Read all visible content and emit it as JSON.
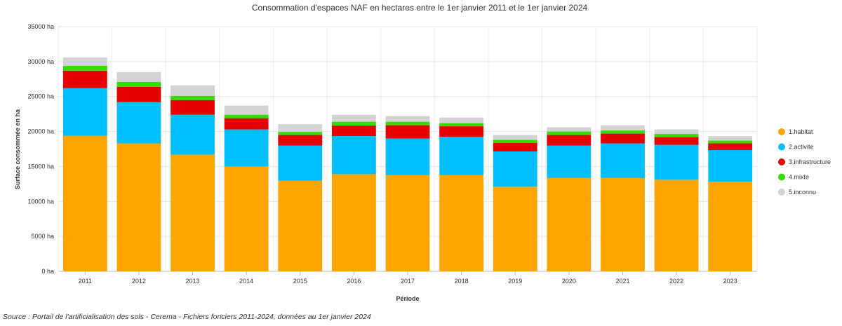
{
  "chart_data": {
    "type": "bar",
    "stacked": true,
    "title": "Consommation d'espaces NAF en hectares entre le 1er janvier 2011 et le 1er janvier 2024",
    "xlabel": "Période",
    "ylabel": "Surface consommée en ha",
    "ylim": [
      0,
      35000
    ],
    "yticks": [
      {
        "value": 0,
        "label": "0 ha"
      },
      {
        "value": 5000,
        "label": "5000 ha"
      },
      {
        "value": 10000,
        "label": "10000 ha"
      },
      {
        "value": 15000,
        "label": "15000 ha"
      },
      {
        "value": 20000,
        "label": "20000 ha"
      },
      {
        "value": 25000,
        "label": "25000 ha"
      },
      {
        "value": 30000,
        "label": "30000 ha"
      },
      {
        "value": 35000,
        "label": "35000 ha"
      }
    ],
    "grid": true,
    "legend_position": "right",
    "categories": [
      "2011",
      "2012",
      "2013",
      "2014",
      "2015",
      "2016",
      "2017",
      "2018",
      "2019",
      "2020",
      "2021",
      "2022",
      "2023"
    ],
    "series": [
      {
        "name": "1.habitat",
        "color": "#FFA500",
        "values": [
          19400,
          18300,
          16700,
          15000,
          12950,
          13900,
          13750,
          13750,
          12100,
          13350,
          13350,
          13100,
          12800
        ]
      },
      {
        "name": "2.activite",
        "color": "#00BFFF",
        "values": [
          6800,
          5900,
          5700,
          5300,
          5050,
          5450,
          5250,
          5500,
          5050,
          4650,
          4950,
          5000,
          4550
        ]
      },
      {
        "name": "3.infrastructure",
        "color": "#E60000",
        "values": [
          2500,
          2200,
          2100,
          1600,
          1500,
          1500,
          1900,
          1500,
          1200,
          1500,
          1400,
          1100,
          950
        ]
      },
      {
        "name": "4.mixte",
        "color": "#33DD00",
        "values": [
          700,
          700,
          600,
          500,
          450,
          550,
          500,
          450,
          450,
          500,
          450,
          450,
          400
        ]
      },
      {
        "name": "5.inconnu",
        "color": "#D3D3D3",
        "values": [
          1200,
          1400,
          1500,
          1300,
          1100,
          1000,
          800,
          800,
          700,
          600,
          750,
          650,
          650
        ]
      }
    ]
  },
  "source_text": "Source : Portail de l'artificialisation des sols - Cerema - Fichiers fonciers 2011-2024, données au 1er janvier 2024"
}
